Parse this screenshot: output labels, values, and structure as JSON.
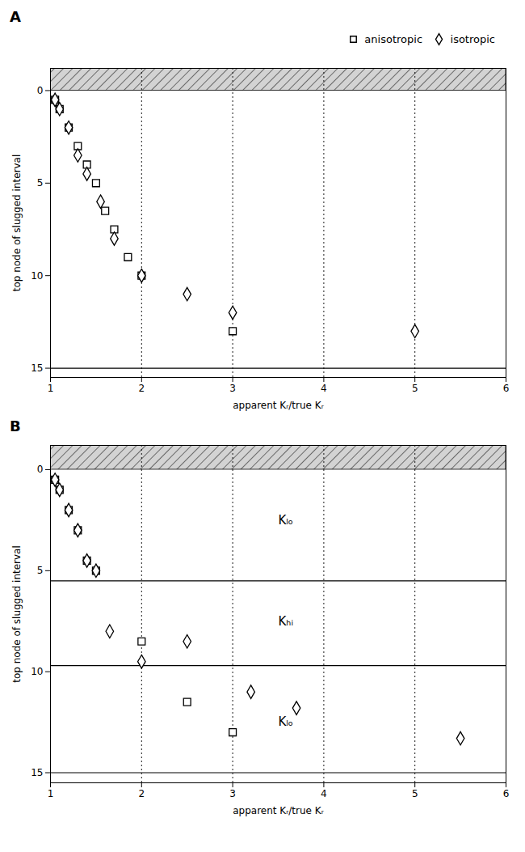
{
  "chart_data": [
    {
      "type": "scatter",
      "title": "A",
      "xlabel": "apparent Kᵣ/true Kᵣ",
      "ylabel": "top node of slugged interval",
      "xlim": [
        1,
        6
      ],
      "ylim": [
        15.5,
        -1.2
      ],
      "xticks": [
        1,
        2,
        3,
        4,
        5,
        6
      ],
      "yticks": [
        0,
        5,
        10,
        15
      ],
      "legend": "upper right",
      "series": [
        {
          "name": "anisotropic",
          "marker": "square",
          "color": "black",
          "x": [
            1.05,
            1.1,
            1.2,
            1.3,
            1.4,
            1.5,
            1.6,
            1.7,
            1.85,
            2.0,
            3.0
          ],
          "values": [
            0.5,
            1.0,
            2.0,
            3.0,
            4.0,
            5.0,
            6.5,
            7.5,
            9.0,
            10.0,
            13.0
          ]
        },
        {
          "name": "isotropic",
          "marker": "diamond",
          "color": "black",
          "x": [
            1.05,
            1.1,
            1.2,
            1.3,
            1.4,
            1.55,
            1.7,
            2.0,
            2.5,
            3.0,
            5.0
          ],
          "values": [
            0.5,
            1.0,
            2.0,
            3.5,
            4.5,
            6.0,
            8.0,
            10.0,
            11.0,
            12.0,
            13.0
          ]
        }
      ],
      "vlines": [
        2,
        3,
        4,
        5
      ],
      "hlines": [
        15
      ],
      "hatched_band": [
        -1.2,
        0.0
      ]
    },
    {
      "type": "scatter",
      "title": "B",
      "xlabel": "apparent Kᵣ/true Kᵣ",
      "ylabel": "top node of slugged interval",
      "xlim": [
        1,
        6
      ],
      "ylim": [
        15.5,
        -1.2
      ],
      "xticks": [
        1,
        2,
        3,
        4,
        5,
        6
      ],
      "yticks": [
        0,
        5,
        10,
        15
      ],
      "series": [
        {
          "name": "anisotropic",
          "marker": "square",
          "color": "black",
          "x": [
            1.05,
            1.1,
            1.2,
            1.3,
            1.4,
            1.5,
            2.0,
            2.5,
            3.0
          ],
          "values": [
            0.5,
            1.0,
            2.0,
            3.0,
            4.5,
            5.0,
            8.5,
            11.5,
            13.0
          ]
        },
        {
          "name": "isotropic",
          "marker": "diamond",
          "color": "black",
          "x": [
            1.05,
            1.1,
            1.2,
            1.3,
            1.4,
            1.5,
            1.65,
            2.0,
            2.5,
            3.2,
            3.7,
            5.5
          ],
          "values": [
            0.5,
            1.0,
            2.0,
            3.0,
            4.5,
            5.0,
            8.0,
            9.5,
            8.5,
            11.0,
            11.8,
            13.3
          ]
        }
      ],
      "vlines": [
        2,
        3,
        4,
        5
      ],
      "hlines": [
        15,
        5.5,
        9.7
      ],
      "hatched_band": [
        -1.2,
        0.0
      ],
      "annotations": [
        {
          "text": "Kₗₒ",
          "x": 3.5,
          "y": 2.5
        },
        {
          "text": "Kₕᵢ",
          "x": 3.5,
          "y": 7.5
        },
        {
          "text": "Kₗₒ",
          "x": 3.5,
          "y": 12.5
        }
      ]
    }
  ]
}
